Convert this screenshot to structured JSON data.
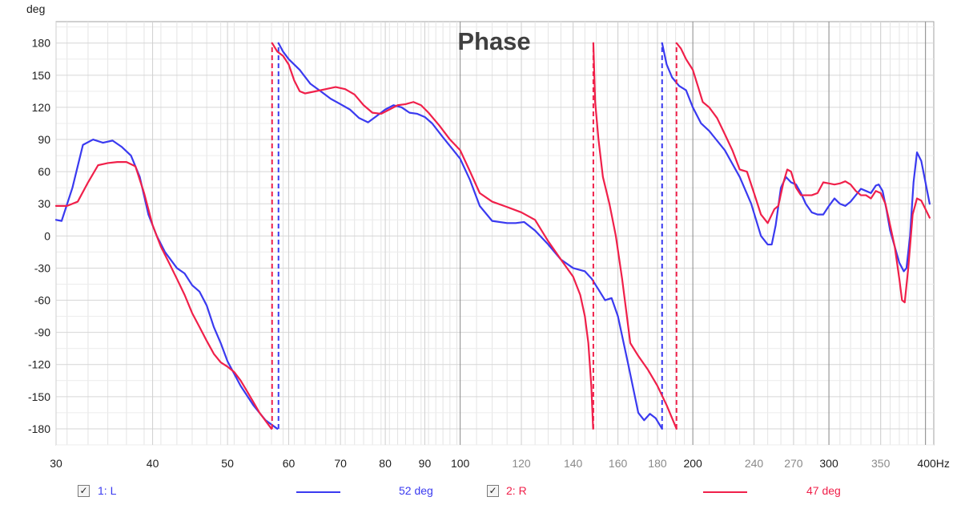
{
  "chart_data": {
    "type": "line",
    "title": "Phase",
    "ylabel": "deg",
    "xlabel": "",
    "x_scale": "log",
    "xlim": [
      30,
      410
    ],
    "ylim": [
      -195,
      200
    ],
    "grid": true,
    "y_ticks": [
      180,
      150,
      120,
      90,
      60,
      30,
      0,
      -30,
      -60,
      -90,
      -120,
      -150,
      -180
    ],
    "x_ticks": [
      {
        "v": 30,
        "label": "30",
        "major": true
      },
      {
        "v": 40,
        "label": "40",
        "major": true
      },
      {
        "v": 50,
        "label": "50",
        "major": true
      },
      {
        "v": 60,
        "label": "60",
        "major": true
      },
      {
        "v": 70,
        "label": "70",
        "major": true
      },
      {
        "v": 80,
        "label": "80",
        "major": true
      },
      {
        "v": 90,
        "label": "90",
        "major": true
      },
      {
        "v": 100,
        "label": "100",
        "major": true
      },
      {
        "v": 120,
        "label": "120",
        "major": false
      },
      {
        "v": 140,
        "label": "140",
        "major": false
      },
      {
        "v": 160,
        "label": "160",
        "major": false
      },
      {
        "v": 180,
        "label": "180",
        "major": false
      },
      {
        "v": 200,
        "label": "200",
        "major": true
      },
      {
        "v": 240,
        "label": "240",
        "major": false
      },
      {
        "v": 270,
        "label": "270",
        "major": false
      },
      {
        "v": 300,
        "label": "300",
        "major": true
      },
      {
        "v": 350,
        "label": "350",
        "major": false
      },
      {
        "v": 400,
        "label": "400Hz",
        "major": true
      }
    ],
    "series": [
      {
        "name": "1: L",
        "color": "#3a3af0",
        "value_label": "52 deg",
        "wraps": [
          {
            "x": 58.2,
            "from": -180,
            "to": 180
          },
          {
            "x": 182.5,
            "from": -180,
            "to": 180
          }
        ],
        "segments": [
          [
            [
              30,
              15
            ],
            [
              30.5,
              14
            ],
            [
              31.5,
              45
            ],
            [
              32.5,
              85
            ],
            [
              33.5,
              90
            ],
            [
              34.5,
              87
            ],
            [
              35.5,
              89
            ],
            [
              36.5,
              83
            ],
            [
              37.5,
              75
            ],
            [
              38.5,
              55
            ],
            [
              39.5,
              20
            ],
            [
              40.5,
              0
            ],
            [
              41.5,
              -15
            ],
            [
              43,
              -30
            ],
            [
              44,
              -35
            ],
            [
              45,
              -46
            ],
            [
              46,
              -52
            ],
            [
              47,
              -65
            ],
            [
              48,
              -85
            ],
            [
              49,
              -100
            ],
            [
              50,
              -117
            ],
            [
              52,
              -140
            ],
            [
              54,
              -158
            ],
            [
              56,
              -172
            ],
            [
              58,
              -180
            ]
          ],
          [
            [
              58.2,
              180
            ],
            [
              59,
              172
            ],
            [
              60,
              165
            ],
            [
              62,
              155
            ],
            [
              64,
              142
            ],
            [
              66,
              135
            ],
            [
              68,
              128
            ],
            [
              70,
              123
            ],
            [
              72,
              118
            ],
            [
              74,
              110
            ],
            [
              76,
              106
            ],
            [
              78,
              112
            ],
            [
              80,
              118
            ],
            [
              82,
              122
            ],
            [
              84,
              120
            ],
            [
              86,
              115
            ],
            [
              88,
              114
            ],
            [
              90,
              111
            ],
            [
              92,
              105
            ],
            [
              95,
              92
            ],
            [
              98,
              80
            ],
            [
              100,
              72
            ],
            [
              103,
              52
            ],
            [
              106,
              28
            ],
            [
              110,
              14
            ],
            [
              115,
              12
            ],
            [
              118,
              12
            ],
            [
              121,
              13
            ],
            [
              125,
              5
            ],
            [
              130,
              -8
            ],
            [
              135,
              -22
            ],
            [
              140,
              -30
            ],
            [
              145,
              -33
            ],
            [
              148,
              -40
            ],
            [
              151,
              -50
            ],
            [
              154,
              -60
            ],
            [
              157,
              -58
            ],
            [
              160,
              -75
            ],
            [
              165,
              -120
            ],
            [
              170,
              -165
            ],
            [
              173,
              -172
            ],
            [
              176,
              -166
            ],
            [
              179,
              -170
            ],
            [
              182.5,
              -180
            ]
          ],
          [
            [
              182.5,
              180
            ],
            [
              185,
              160
            ],
            [
              188,
              148
            ],
            [
              192,
              140
            ],
            [
              196,
              136
            ],
            [
              200,
              120
            ],
            [
              205,
              105
            ],
            [
              210,
              98
            ],
            [
              220,
              80
            ],
            [
              230,
              55
            ],
            [
              238,
              30
            ],
            [
              245,
              0
            ],
            [
              250,
              -8
            ],
            [
              253,
              -8
            ],
            [
              256,
              10
            ],
            [
              260,
              45
            ],
            [
              264,
              55
            ],
            [
              268,
              50
            ],
            [
              272,
              48
            ],
            [
              276,
              40
            ],
            [
              280,
              30
            ],
            [
              285,
              22
            ],
            [
              290,
              20
            ],
            [
              295,
              20
            ],
            [
              300,
              28
            ],
            [
              305,
              35
            ],
            [
              310,
              30
            ],
            [
              315,
              28
            ],
            [
              320,
              32
            ],
            [
              325,
              38
            ],
            [
              330,
              44
            ],
            [
              335,
              42
            ],
            [
              340,
              40
            ],
            [
              345,
              47
            ],
            [
              348,
              48
            ],
            [
              352,
              42
            ],
            [
              356,
              25
            ],
            [
              360,
              5
            ],
            [
              365,
              -10
            ],
            [
              370,
              -25
            ],
            [
              375,
              -33
            ],
            [
              378,
              -30
            ],
            [
              382,
              0
            ],
            [
              386,
              50
            ],
            [
              390,
              78
            ],
            [
              395,
              70
            ],
            [
              400,
              50
            ],
            [
              405,
              30
            ]
          ]
        ]
      },
      {
        "name": "2: R",
        "color": "#f0204a",
        "value_label": "47 deg",
        "wraps": [
          {
            "x": 57.1,
            "from": -180,
            "to": 180
          },
          {
            "x": 148.7,
            "from": -180,
            "to": 180
          },
          {
            "x": 190.5,
            "from": -180,
            "to": 180
          }
        ],
        "segments": [
          [
            [
              30,
              28
            ],
            [
              31,
              28
            ],
            [
              32,
              32
            ],
            [
              33,
              50
            ],
            [
              34,
              66
            ],
            [
              35,
              68
            ],
            [
              36,
              69
            ],
            [
              37,
              69
            ],
            [
              38,
              65
            ],
            [
              39,
              40
            ],
            [
              40,
              10
            ],
            [
              41,
              -10
            ],
            [
              42,
              -25
            ],
            [
              43,
              -40
            ],
            [
              44,
              -55
            ],
            [
              45,
              -72
            ],
            [
              46,
              -85
            ],
            [
              47,
              -98
            ],
            [
              48,
              -110
            ],
            [
              49,
              -118
            ],
            [
              50,
              -122
            ],
            [
              51,
              -127
            ],
            [
              52,
              -135
            ],
            [
              53,
              -145
            ],
            [
              54,
              -155
            ],
            [
              55,
              -165
            ],
            [
              57,
              -180
            ]
          ],
          [
            [
              57.1,
              180
            ],
            [
              58,
              172
            ],
            [
              59,
              168
            ],
            [
              60,
              160
            ],
            [
              61,
              145
            ],
            [
              62,
              135
            ],
            [
              63,
              133
            ],
            [
              65,
              135
            ],
            [
              67,
              137
            ],
            [
              69,
              139
            ],
            [
              71,
              137
            ],
            [
              73,
              132
            ],
            [
              75,
              122
            ],
            [
              77,
              115
            ],
            [
              79,
              114
            ],
            [
              81,
              118
            ],
            [
              83,
              122
            ],
            [
              85,
              123
            ],
            [
              87,
              125
            ],
            [
              89,
              122
            ],
            [
              91,
              115
            ],
            [
              94,
              103
            ],
            [
              97,
              90
            ],
            [
              100,
              80
            ],
            [
              103,
              60
            ],
            [
              106,
              40
            ],
            [
              110,
              32
            ],
            [
              115,
              27
            ],
            [
              120,
              22
            ],
            [
              125,
              15
            ],
            [
              130,
              -5
            ],
            [
              135,
              -22
            ],
            [
              140,
              -38
            ],
            [
              143,
              -55
            ],
            [
              145,
              -75
            ],
            [
              146.5,
              -100
            ],
            [
              147.8,
              -140
            ],
            [
              148.6,
              -180
            ]
          ],
          [
            [
              148.7,
              180
            ],
            [
              149.5,
              125
            ],
            [
              151,
              90
            ],
            [
              153,
              55
            ],
            [
              156,
              30
            ],
            [
              159,
              0
            ],
            [
              162,
              -40
            ],
            [
              164,
              -70
            ],
            [
              166,
              -100
            ],
            [
              170,
              -112
            ],
            [
              175,
              -125
            ],
            [
              180,
              -140
            ],
            [
              185,
              -158
            ],
            [
              190.5,
              -180
            ]
          ],
          [
            [
              190.5,
              180
            ],
            [
              193,
              175
            ],
            [
              196,
              165
            ],
            [
              200,
              155
            ],
            [
              203,
              140
            ],
            [
              206,
              125
            ],
            [
              210,
              120
            ],
            [
              215,
              110
            ],
            [
              220,
              95
            ],
            [
              225,
              80
            ],
            [
              230,
              62
            ],
            [
              235,
              60
            ],
            [
              240,
              40
            ],
            [
              245,
              20
            ],
            [
              250,
              12
            ],
            [
              255,
              25
            ],
            [
              258,
              28
            ],
            [
              262,
              50
            ],
            [
              265,
              62
            ],
            [
              268,
              60
            ],
            [
              272,
              45
            ],
            [
              276,
              38
            ],
            [
              280,
              38
            ],
            [
              285,
              38
            ],
            [
              290,
              40
            ],
            [
              295,
              50
            ],
            [
              300,
              49
            ],
            [
              305,
              48
            ],
            [
              310,
              49
            ],
            [
              315,
              51
            ],
            [
              320,
              48
            ],
            [
              325,
              42
            ],
            [
              330,
              38
            ],
            [
              335,
              38
            ],
            [
              340,
              35
            ],
            [
              345,
              42
            ],
            [
              350,
              40
            ],
            [
              355,
              30
            ],
            [
              360,
              10
            ],
            [
              365,
              -10
            ],
            [
              370,
              -40
            ],
            [
              373,
              -60
            ],
            [
              376,
              -62
            ],
            [
              380,
              -30
            ],
            [
              385,
              20
            ],
            [
              390,
              35
            ],
            [
              395,
              33
            ],
            [
              400,
              25
            ],
            [
              405,
              17
            ]
          ]
        ]
      }
    ]
  }
}
